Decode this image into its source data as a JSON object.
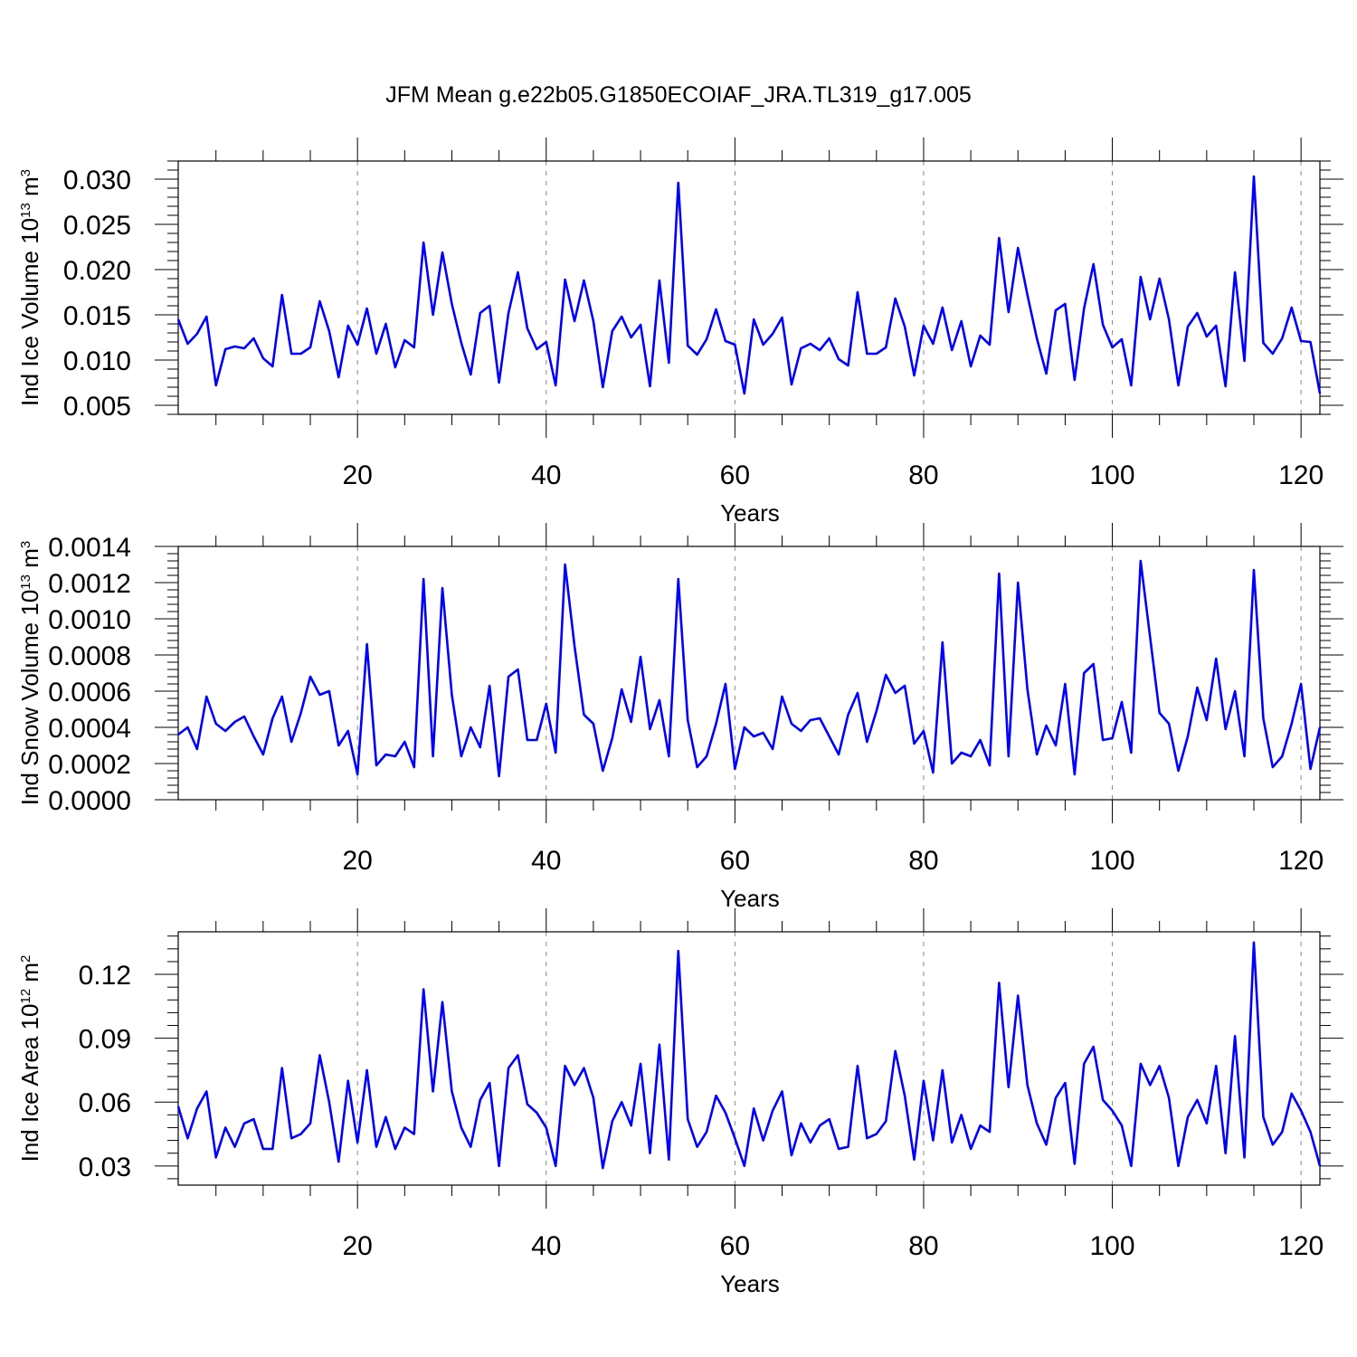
{
  "title": "JFM Mean g.e22b05.G1850ECOIAF_JRA.TL319_g17.005",
  "chart_data": [
    {
      "type": "line",
      "panel": "ice-volume",
      "ylabel_main": "Ind Ice Volume 10",
      "ylabel_exp": "13",
      "ylabel_unit": " m",
      "ylabel_unit_exp": "3",
      "xlabel": "Years",
      "xlim": [
        1,
        122
      ],
      "ylim": [
        0.004,
        0.032
      ],
      "x_ticks": [
        "20",
        "40",
        "60",
        "80",
        "100",
        "120"
      ],
      "y_ticks": [
        "0.005",
        "0.010",
        "0.015",
        "0.020",
        "0.025",
        "0.030"
      ],
      "color": "#0000ff",
      "x_start": 1,
      "values": [
        0.0145,
        0.0118,
        0.0129,
        0.0148,
        0.0072,
        0.0112,
        0.0115,
        0.0113,
        0.0124,
        0.0102,
        0.0093,
        0.0172,
        0.0107,
        0.0107,
        0.0114,
        0.0165,
        0.0132,
        0.0081,
        0.0138,
        0.0117,
        0.0157,
        0.0107,
        0.014,
        0.0092,
        0.0122,
        0.0114,
        0.023,
        0.015,
        0.0219,
        0.0162,
        0.0119,
        0.0084,
        0.0152,
        0.016,
        0.0075,
        0.0152,
        0.0197,
        0.0135,
        0.0112,
        0.012,
        0.0072,
        0.0189,
        0.0143,
        0.0188,
        0.0143,
        0.007,
        0.0132,
        0.0148,
        0.0125,
        0.0139,
        0.0071,
        0.0188,
        0.0097,
        0.0296,
        0.0116,
        0.0106,
        0.0123,
        0.0156,
        0.0121,
        0.0117,
        0.0063,
        0.0145,
        0.0117,
        0.0129,
        0.0147,
        0.0073,
        0.0113,
        0.0118,
        0.0111,
        0.0124,
        0.0101,
        0.0094,
        0.0175,
        0.0107,
        0.0107,
        0.0114,
        0.0168,
        0.0137,
        0.0083,
        0.0138,
        0.0118,
        0.0158,
        0.0111,
        0.0143,
        0.0093,
        0.0127,
        0.0117,
        0.0235,
        0.0153,
        0.0224,
        0.0172,
        0.0124,
        0.0085,
        0.0155,
        0.0162,
        0.0078,
        0.0157,
        0.0206,
        0.0139,
        0.0114,
        0.0123,
        0.0072,
        0.0192,
        0.0145,
        0.019,
        0.0145,
        0.0072,
        0.0137,
        0.0152,
        0.0126,
        0.0138,
        0.0071,
        0.0197,
        0.0099,
        0.0303,
        0.0119,
        0.0107,
        0.0124,
        0.0158,
        0.0121,
        0.012,
        0.0063
      ]
    },
    {
      "type": "line",
      "panel": "snow-volume",
      "ylabel_main": "Ind Snow Volume 10",
      "ylabel_exp": "13",
      "ylabel_unit": " m",
      "ylabel_unit_exp": "3",
      "xlabel": "Years",
      "xlim": [
        1,
        122
      ],
      "ylim": [
        0.0,
        0.0014
      ],
      "x_ticks": [
        "20",
        "40",
        "60",
        "80",
        "100",
        "120"
      ],
      "y_ticks": [
        "0.0000",
        "0.0002",
        "0.0004",
        "0.0006",
        "0.0008",
        "0.0010",
        "0.0012",
        "0.0014"
      ],
      "color": "#0000ff",
      "x_start": 1,
      "values": [
        0.00036,
        0.0004,
        0.00028,
        0.00057,
        0.00042,
        0.00038,
        0.00043,
        0.00046,
        0.00035,
        0.00025,
        0.00045,
        0.00057,
        0.00032,
        0.00048,
        0.00068,
        0.00058,
        0.0006,
        0.0003,
        0.00038,
        0.00014,
        0.00086,
        0.00019,
        0.00025,
        0.00024,
        0.00032,
        0.00018,
        0.00122,
        0.00024,
        0.00117,
        0.00058,
        0.00024,
        0.0004,
        0.00029,
        0.00063,
        0.00013,
        0.00068,
        0.00072,
        0.00033,
        0.00033,
        0.00053,
        0.00026,
        0.0013,
        0.00085,
        0.00047,
        0.00042,
        0.00016,
        0.00034,
        0.00061,
        0.00043,
        0.00079,
        0.00039,
        0.00055,
        0.00024,
        0.00122,
        0.00044,
        0.00018,
        0.00024,
        0.00042,
        0.00064,
        0.00017,
        0.0004,
        0.00035,
        0.00037,
        0.00028,
        0.00057,
        0.00042,
        0.00038,
        0.00044,
        0.00045,
        0.00035,
        0.00025,
        0.00047,
        0.00059,
        0.00032,
        0.00049,
        0.00069,
        0.00059,
        0.00063,
        0.00031,
        0.00038,
        0.00015,
        0.00087,
        0.0002,
        0.00026,
        0.00024,
        0.00033,
        0.00019,
        0.00125,
        0.00024,
        0.0012,
        0.00061,
        0.00025,
        0.00041,
        0.0003,
        0.00064,
        0.00014,
        0.0007,
        0.00075,
        0.00033,
        0.00034,
        0.00054,
        0.00026,
        0.00132,
        0.0009,
        0.00048,
        0.00042,
        0.00016,
        0.00035,
        0.00062,
        0.00044,
        0.00078,
        0.00039,
        0.0006,
        0.00024,
        0.00127,
        0.00045,
        0.00018,
        0.00024,
        0.00042,
        0.00064,
        0.00017,
        0.0004
      ]
    },
    {
      "type": "line",
      "panel": "ice-area",
      "ylabel_main": "Ind Ice Area 10",
      "ylabel_exp": "12",
      "ylabel_unit": " m",
      "ylabel_unit_exp": "2",
      "xlabel": "Years",
      "xlim": [
        1,
        122
      ],
      "ylim": [
        0.021,
        0.14
      ],
      "x_ticks": [
        "20",
        "40",
        "60",
        "80",
        "100",
        "120"
      ],
      "y_ticks": [
        "0.03",
        "0.06",
        "0.09",
        "0.12"
      ],
      "color": "#0000ff",
      "x_start": 1,
      "values": [
        0.058,
        0.043,
        0.057,
        0.065,
        0.034,
        0.048,
        0.039,
        0.05,
        0.052,
        0.038,
        0.038,
        0.076,
        0.043,
        0.045,
        0.05,
        0.082,
        0.06,
        0.032,
        0.07,
        0.041,
        0.075,
        0.039,
        0.053,
        0.038,
        0.048,
        0.045,
        0.113,
        0.065,
        0.107,
        0.065,
        0.048,
        0.039,
        0.061,
        0.069,
        0.03,
        0.076,
        0.082,
        0.059,
        0.055,
        0.048,
        0.03,
        0.077,
        0.068,
        0.076,
        0.062,
        0.029,
        0.051,
        0.06,
        0.049,
        0.078,
        0.036,
        0.087,
        0.033,
        0.131,
        0.052,
        0.039,
        0.046,
        0.063,
        0.055,
        0.043,
        0.03,
        0.057,
        0.042,
        0.056,
        0.065,
        0.035,
        0.05,
        0.041,
        0.049,
        0.052,
        0.038,
        0.039,
        0.077,
        0.043,
        0.045,
        0.051,
        0.084,
        0.063,
        0.033,
        0.07,
        0.042,
        0.075,
        0.041,
        0.054,
        0.038,
        0.049,
        0.046,
        0.116,
        0.067,
        0.11,
        0.068,
        0.05,
        0.04,
        0.062,
        0.069,
        0.031,
        0.078,
        0.086,
        0.061,
        0.056,
        0.049,
        0.03,
        0.078,
        0.068,
        0.077,
        0.062,
        0.03,
        0.053,
        0.061,
        0.05,
        0.077,
        0.036,
        0.091,
        0.034,
        0.135,
        0.053,
        0.04,
        0.046,
        0.064,
        0.056,
        0.046,
        0.03
      ]
    }
  ]
}
